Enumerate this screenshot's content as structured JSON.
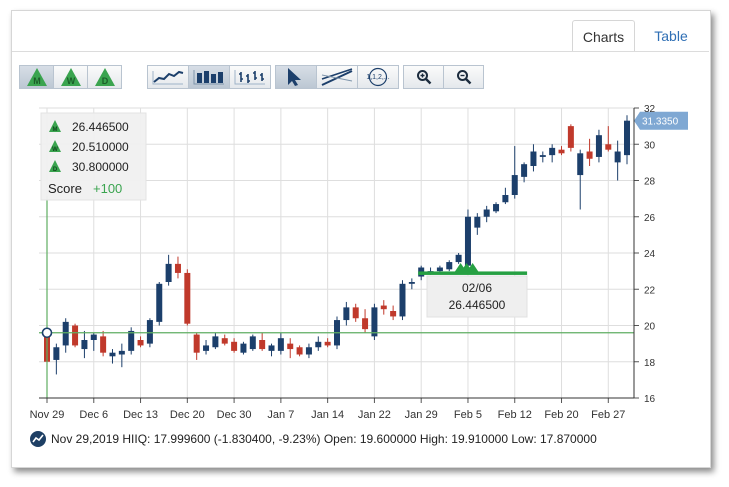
{
  "tabs": {
    "charts": "Charts",
    "table": "Table"
  },
  "toolbar": {
    "period_buttons": [
      "M",
      "W",
      "D"
    ],
    "chart_type_buttons": [
      "line-chart-icon",
      "bar-chart-icon",
      "ohlc-chart-icon"
    ],
    "tool_buttons": [
      "pointer-icon",
      "trendline-icon",
      "fibonacci-icon"
    ],
    "fibonacci_label": "1,1,2,...",
    "zoom_buttons": [
      "zoom-in-icon",
      "zoom-out-icon"
    ]
  },
  "info_box": {
    "monthly": "26.446500",
    "weekly": "20.510000",
    "daily": "30.800000",
    "score_label": "Score",
    "score_value": "+100"
  },
  "tooltip": {
    "date": "02/06",
    "value": "26.446500"
  },
  "last_price_badge": "31.3350",
  "footer": {
    "date": "Nov 29,2019",
    "text": "Nov 29,2019 HIIQ: 17.999600 (-1.830400, -9.23%) Open: 19.600000 High: 19.910000 Low: 17.870000"
  },
  "chart_data": {
    "type": "candlestick",
    "ticker": "HIIQ",
    "ylim": [
      16,
      32
    ],
    "y_ticks": [
      16,
      18,
      20,
      22,
      24,
      26,
      28,
      30,
      32
    ],
    "x_tick_labels": [
      "Nov 29",
      "Dec 6",
      "Dec 13",
      "Dec 20",
      "Dec 30",
      "Jan 7",
      "Jan 14",
      "Jan 22",
      "Jan 29",
      "Feb 5",
      "Feb 12",
      "Feb 20",
      "Feb 27"
    ],
    "x_tick_index": [
      0,
      5,
      10,
      15,
      20,
      25,
      30,
      35,
      40,
      45,
      50,
      55,
      60
    ],
    "colors": {
      "up": "#1c3f6b",
      "down": "#c0392b",
      "grid": "#dedede",
      "signal": "#26a043"
    },
    "horizontal_line": 19.6,
    "signal_level": 22.9,
    "signal_range_index": [
      40,
      51
    ],
    "candles": [
      {
        "o": 19.6,
        "h": 19.91,
        "l": 17.87,
        "c": 18.0
      },
      {
        "o": 18.1,
        "h": 19.0,
        "l": 17.3,
        "c": 18.8
      },
      {
        "o": 18.9,
        "h": 20.4,
        "l": 18.5,
        "c": 20.2
      },
      {
        "o": 20.0,
        "h": 20.1,
        "l": 18.8,
        "c": 18.9
      },
      {
        "o": 18.7,
        "h": 19.7,
        "l": 18.2,
        "c": 19.2
      },
      {
        "o": 19.2,
        "h": 19.6,
        "l": 18.6,
        "c": 19.5
      },
      {
        "o": 19.4,
        "h": 19.7,
        "l": 18.3,
        "c": 18.5
      },
      {
        "o": 18.3,
        "h": 18.7,
        "l": 17.9,
        "c": 18.5
      },
      {
        "o": 18.4,
        "h": 19.0,
        "l": 17.7,
        "c": 18.6
      },
      {
        "o": 18.6,
        "h": 19.9,
        "l": 18.4,
        "c": 19.7
      },
      {
        "o": 19.2,
        "h": 19.4,
        "l": 18.8,
        "c": 18.9
      },
      {
        "o": 19.0,
        "h": 20.4,
        "l": 18.8,
        "c": 20.3
      },
      {
        "o": 20.2,
        "h": 22.4,
        "l": 20.0,
        "c": 22.3
      },
      {
        "o": 22.4,
        "h": 23.9,
        "l": 22.2,
        "c": 23.4
      },
      {
        "o": 23.4,
        "h": 23.8,
        "l": 22.6,
        "c": 22.9
      },
      {
        "o": 22.9,
        "h": 23.1,
        "l": 20.0,
        "c": 20.1
      },
      {
        "o": 19.5,
        "h": 19.6,
        "l": 18.1,
        "c": 18.5
      },
      {
        "o": 18.6,
        "h": 19.2,
        "l": 18.4,
        "c": 18.9
      },
      {
        "o": 18.8,
        "h": 19.6,
        "l": 18.7,
        "c": 19.4
      },
      {
        "o": 19.3,
        "h": 19.5,
        "l": 18.9,
        "c": 19.0
      },
      {
        "o": 19.1,
        "h": 19.3,
        "l": 18.5,
        "c": 18.6
      },
      {
        "o": 18.5,
        "h": 19.1,
        "l": 18.4,
        "c": 19.0
      },
      {
        "o": 18.7,
        "h": 19.5,
        "l": 18.6,
        "c": 19.4
      },
      {
        "o": 19.2,
        "h": 19.6,
        "l": 18.6,
        "c": 18.7
      },
      {
        "o": 18.6,
        "h": 19.0,
        "l": 18.3,
        "c": 18.9
      },
      {
        "o": 18.6,
        "h": 19.6,
        "l": 18.4,
        "c": 19.3
      },
      {
        "o": 19.0,
        "h": 19.3,
        "l": 18.2,
        "c": 18.7
      },
      {
        "o": 18.8,
        "h": 18.9,
        "l": 18.3,
        "c": 18.4
      },
      {
        "o": 18.4,
        "h": 19.0,
        "l": 18.2,
        "c": 18.8
      },
      {
        "o": 18.8,
        "h": 19.4,
        "l": 18.6,
        "c": 19.1
      },
      {
        "o": 19.1,
        "h": 19.3,
        "l": 18.8,
        "c": 18.9
      },
      {
        "o": 18.9,
        "h": 20.5,
        "l": 18.7,
        "c": 20.3
      },
      {
        "o": 20.3,
        "h": 21.3,
        "l": 20.0,
        "c": 21.0
      },
      {
        "o": 21.0,
        "h": 21.2,
        "l": 20.2,
        "c": 20.4
      },
      {
        "o": 20.4,
        "h": 20.9,
        "l": 19.6,
        "c": 19.8
      },
      {
        "o": 19.4,
        "h": 21.2,
        "l": 19.2,
        "c": 21.0
      },
      {
        "o": 21.1,
        "h": 21.4,
        "l": 20.6,
        "c": 20.9
      },
      {
        "o": 20.8,
        "h": 21.1,
        "l": 20.3,
        "c": 20.5
      },
      {
        "o": 20.5,
        "h": 22.5,
        "l": 20.3,
        "c": 22.3
      },
      {
        "o": 22.3,
        "h": 22.6,
        "l": 22.0,
        "c": 22.4
      },
      {
        "o": 22.7,
        "h": 23.3,
        "l": 22.5,
        "c": 23.2
      },
      {
        "o": 23.0,
        "h": 23.2,
        "l": 22.8,
        "c": 23.0
      },
      {
        "o": 23.0,
        "h": 23.3,
        "l": 22.9,
        "c": 23.2
      },
      {
        "o": 23.1,
        "h": 23.6,
        "l": 23.0,
        "c": 23.5
      },
      {
        "o": 23.5,
        "h": 24.0,
        "l": 23.4,
        "c": 23.9
      },
      {
        "o": 23.3,
        "h": 26.4,
        "l": 23.2,
        "c": 26.0
      },
      {
        "o": 25.4,
        "h": 26.2,
        "l": 25.0,
        "c": 26.0
      },
      {
        "o": 26.0,
        "h": 26.6,
        "l": 25.7,
        "c": 26.4
      },
      {
        "o": 26.3,
        "h": 26.8,
        "l": 26.2,
        "c": 26.7
      },
      {
        "o": 26.8,
        "h": 27.6,
        "l": 26.7,
        "c": 27.2
      },
      {
        "o": 27.2,
        "h": 29.9,
        "l": 27.0,
        "c": 28.3
      },
      {
        "o": 28.2,
        "h": 29.0,
        "l": 27.9,
        "c": 28.9
      },
      {
        "o": 28.8,
        "h": 30.0,
        "l": 28.5,
        "c": 29.6
      },
      {
        "o": 29.3,
        "h": 29.6,
        "l": 29.0,
        "c": 29.4
      },
      {
        "o": 29.4,
        "h": 30.0,
        "l": 29.0,
        "c": 29.8
      },
      {
        "o": 29.7,
        "h": 29.9,
        "l": 29.4,
        "c": 29.5
      },
      {
        "o": 31.0,
        "h": 31.1,
        "l": 29.6,
        "c": 29.8
      },
      {
        "o": 28.3,
        "h": 29.7,
        "l": 26.4,
        "c": 29.5
      },
      {
        "o": 29.6,
        "h": 30.3,
        "l": 28.8,
        "c": 29.2
      },
      {
        "o": 29.3,
        "h": 30.8,
        "l": 29.0,
        "c": 30.5
      },
      {
        "o": 30.0,
        "h": 31.0,
        "l": 29.6,
        "c": 29.7
      },
      {
        "o": 29.0,
        "h": 30.2,
        "l": 28.0,
        "c": 29.6
      },
      {
        "o": 29.4,
        "h": 31.6,
        "l": 28.9,
        "c": 31.3
      }
    ]
  }
}
